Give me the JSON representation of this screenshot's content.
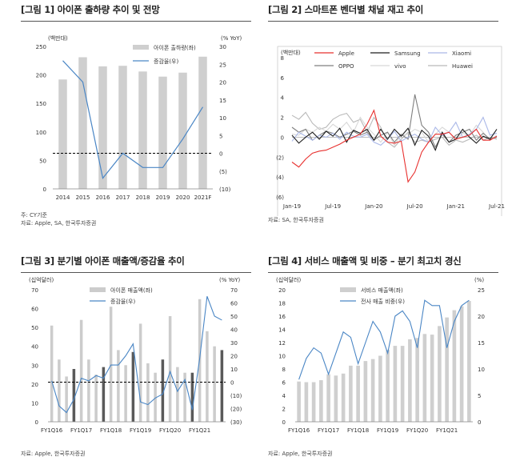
{
  "chart_data": [
    {
      "type": "bar+line",
      "title": "[그림 1] 아이폰 출하량 추이 및 전망",
      "left_unit": "(백만대)",
      "right_unit": "(% YoY)",
      "categories": [
        "2014",
        "2015",
        "2016",
        "2017",
        "2018",
        "2019",
        "2020",
        "2021F"
      ],
      "bar_series": {
        "name": "아이폰 출하량(좌)",
        "values": [
          192,
          231,
          215,
          216,
          206,
          197,
          204,
          232
        ]
      },
      "line_series": {
        "name": "증감율(우)",
        "values": [
          26,
          20,
          -7,
          0,
          -4,
          -4,
          4,
          13
        ]
      },
      "ylim_left": [
        0,
        250
      ],
      "ylim_right": [
        -10,
        30
      ],
      "left_ticks": [
        "0",
        "50",
        "100",
        "150",
        "200",
        "250"
      ],
      "right_ticks": [
        "(10)",
        "(5)",
        "0",
        "5",
        "10",
        "15",
        "20",
        "25",
        "30"
      ],
      "notes": [
        "주: CY기준",
        "자료: Apple, SA, 한국투자증권"
      ]
    },
    {
      "type": "line",
      "title": "[그림 2] 스마트폰 벤더별 채널 재고 추이",
      "unit": "(백만대)",
      "ylim": [
        -6,
        8
      ],
      "y_ticks": [
        "(6)",
        "(4)",
        "(2)",
        "0",
        "2",
        "4",
        "6",
        "8"
      ],
      "x_ticks": [
        "Jan-19",
        "Jul-19",
        "Jan-20",
        "Jul-20",
        "Jan-21",
        "Jul-21"
      ],
      "series": [
        {
          "name": "Apple",
          "color": "#e8312f",
          "values": [
            -2.5,
            -3,
            -2.2,
            -1.6,
            -1.4,
            -1.3,
            -1,
            -0.7,
            -0.3,
            0,
            0.3,
            1.3,
            2.7,
            0.1,
            -0.5,
            -0.6,
            -0.4,
            -4.5,
            -3.5,
            -1.5,
            -0.5,
            0.3,
            0.3,
            0.5,
            -0.2,
            0,
            0.2,
            0.8,
            -0.3,
            -0.3,
            0.1
          ]
        },
        {
          "name": "Samsung",
          "color": "#1e1e1e",
          "values": [
            0.2,
            -0.6,
            0,
            0.5,
            -0.2,
            0.6,
            0.1,
            0.9,
            -0.5,
            0.7,
            0.4,
            0.8,
            -0.3,
            0.8,
            -0.2,
            0.8,
            0.1,
            0.9,
            -0.8,
            0.7,
            0.1,
            -1.3,
            0.5,
            -0.5,
            -0.2,
            0.8,
            0,
            -0.6,
            0.1,
            -0.2,
            0.8
          ]
        },
        {
          "name": "Xiaomi",
          "color": "#aab8e8",
          "values": [
            -0.4,
            0.5,
            0.1,
            -0.3,
            0.2,
            0,
            0.4,
            -0.2,
            0.5,
            0.1,
            0,
            0.3,
            -0.5,
            -0.8,
            -0.2,
            0.6,
            -0.4,
            0,
            0.3,
            -0.2,
            -0.5,
            1,
            0.2,
            0.5,
            1.5,
            0,
            0.3,
            0.8,
            2,
            0.2,
            0.4
          ]
        },
        {
          "name": "OPPO",
          "color": "#7f7f7f",
          "values": [
            1,
            0.5,
            0.8,
            -0.3,
            0.2,
            0.6,
            0.4,
            0,
            0.3,
            0.6,
            0.2,
            0.5,
            -0.3,
            0.2,
            0.5,
            -0.5,
            0.3,
            -0.2,
            4.3,
            1.2,
            0.5,
            -1,
            0.3,
            -0.5,
            0.2,
            0.5,
            0.8,
            -0.3,
            0.4,
            -0.2,
            0
          ]
        },
        {
          "name": "vivo",
          "color": "#d8d8d8",
          "values": [
            0.3,
            0.2,
            0.8,
            0.5,
            1,
            0.6,
            1.3,
            0.8,
            1.5,
            0.5,
            2,
            1,
            0.3,
            -0.5,
            0.5,
            -0.8,
            0.2,
            0.3,
            0.8,
            0.5,
            -0.5,
            0.3,
            1,
            0.5,
            -0.3,
            0.4,
            0.2,
            1.2,
            0.5,
            -0.3,
            0.2
          ]
        },
        {
          "name": "Huawei",
          "color": "#b9b9b9",
          "values": [
            2.2,
            1.8,
            2.5,
            1.4,
            0.8,
            1,
            1.8,
            2.2,
            2.4,
            1.5,
            1.8,
            0.5,
            2,
            1,
            -0.5,
            -1,
            -0.2,
            0.5,
            -0.5,
            -0.3,
            -0.5,
            -0.2,
            0,
            -0.8,
            -0.3,
            -0.5,
            -0.2,
            0.2,
            -0.3,
            0,
            -0.2
          ]
        }
      ],
      "notes": [
        "자료: SA, 한국투자증권"
      ]
    },
    {
      "type": "bar+line",
      "title": "[그림 3] 분기별 아이폰 매출액/증감율 추이",
      "left_unit": "(십억달러)",
      "right_unit": "(% YoY)",
      "categories": [
        "FY1Q16",
        "FY2Q16",
        "FY3Q16",
        "FY4Q16",
        "FY1Q17",
        "FY2Q17",
        "FY3Q17",
        "FY4Q17",
        "FY1Q18",
        "FY2Q18",
        "FY3Q18",
        "FY4Q18",
        "FY1Q19",
        "FY2Q19",
        "FY3Q19",
        "FY4Q19",
        "FY1Q20",
        "FY2Q20",
        "FY3Q20",
        "FY4Q20",
        "FY1Q21",
        "FY2Q21",
        "FY3Q21",
        "FY4Q21"
      ],
      "x_ticks": [
        "FY1Q16",
        "FY1Q17",
        "FY1Q18",
        "FY1Q19",
        "FY1Q20",
        "FY1Q21"
      ],
      "bar_series": {
        "name": "아이폰 매출액(좌)",
        "values": [
          51,
          33,
          24,
          28,
          54,
          33,
          25,
          29,
          61,
          38,
          30,
          37,
          52,
          31,
          26,
          33,
          56,
          29,
          26,
          26,
          65,
          48,
          40,
          38
        ]
      },
      "line_series": {
        "name": "증감율(우)",
        "values": [
          1,
          -18,
          -23,
          -13,
          3,
          1,
          5,
          3,
          13,
          13,
          20,
          29,
          -15,
          -17,
          -12,
          -9,
          8,
          -7,
          2,
          -21,
          18,
          65,
          50,
          47
        ]
      },
      "ylim_left": [
        0,
        70
      ],
      "ylim_right": [
        -30,
        70
      ],
      "left_ticks": [
        "0",
        "10",
        "20",
        "30",
        "40",
        "50",
        "60",
        "70"
      ],
      "right_ticks": [
        "(30)",
        "(20)",
        "(10)",
        "0",
        "10",
        "20",
        "30",
        "40",
        "50",
        "60",
        "70"
      ],
      "notes": [
        "자료: Apple, 한국투자증권"
      ]
    },
    {
      "type": "bar+line",
      "title": "[그림 4] 서비스 매출액 및 비중 – 분기 최고치 경신",
      "left_unit": "(십억달러)",
      "right_unit": "(%)",
      "categories": [
        "FY1Q16",
        "FY2Q16",
        "FY3Q16",
        "FY4Q16",
        "FY1Q17",
        "FY2Q17",
        "FY3Q17",
        "FY4Q17",
        "FY1Q18",
        "FY2Q18",
        "FY3Q18",
        "FY4Q18",
        "FY1Q19",
        "FY2Q19",
        "FY3Q19",
        "FY4Q19",
        "FY1Q20",
        "FY2Q20",
        "FY3Q20",
        "FY4Q20",
        "FY1Q21",
        "FY2Q21",
        "FY3Q21",
        "FY4Q21"
      ],
      "x_ticks": [
        "FY1Q16",
        "FY1Q17",
        "FY1Q18",
        "FY1Q19",
        "FY1Q20",
        "FY1Q21"
      ],
      "bar_series": {
        "name": "서비스 매출액(좌)",
        "values": [
          6.1,
          6,
          6,
          6.3,
          7.2,
          7,
          7.3,
          8.5,
          8.5,
          9.2,
          9.5,
          10,
          10.9,
          11.5,
          11.5,
          12.5,
          12.7,
          13.3,
          13.2,
          14.5,
          15.8,
          16.9,
          17.5,
          18.3
        ]
      },
      "line_series": {
        "name": "전사 매출 비중(우)",
        "values": [
          8,
          12,
          14,
          13,
          9,
          13,
          17,
          16,
          11,
          15,
          19,
          17,
          13,
          20,
          21,
          19,
          14,
          23,
          22,
          22,
          14,
          19,
          22,
          23
        ]
      },
      "ylim_left": [
        0,
        20
      ],
      "ylim_right": [
        0,
        25
      ],
      "left_ticks": [
        "0",
        "2",
        "4",
        "6",
        "8",
        "10",
        "12",
        "14",
        "16",
        "18",
        "20"
      ],
      "right_ticks": [
        "0",
        "5",
        "10",
        "15",
        "20",
        "25"
      ],
      "notes": [
        "자료: Apple, 한국투자증권"
      ]
    }
  ]
}
